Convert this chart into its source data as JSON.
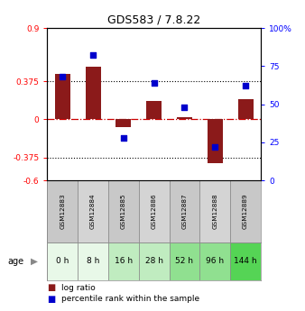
{
  "title": "GDS583 / 7.8.22",
  "samples": [
    "GSM12883",
    "GSM12884",
    "GSM12885",
    "GSM12886",
    "GSM12887",
    "GSM12888",
    "GSM12889"
  ],
  "ages": [
    "0 h",
    "8 h",
    "16 h",
    "28 h",
    "52 h",
    "96 h",
    "144 h"
  ],
  "log_ratio": [
    0.45,
    0.52,
    -0.08,
    0.18,
    0.02,
    -0.43,
    0.2
  ],
  "percentile": [
    68,
    82,
    28,
    64,
    48,
    22,
    62
  ],
  "bar_color": "#8B1A1A",
  "dot_color": "#0000CC",
  "left_yticks": [
    0.9,
    0.375,
    0.0,
    -0.375,
    -0.6
  ],
  "left_ylabels": [
    "0.9",
    "0.375",
    "0",
    "-0.375",
    "-0.6"
  ],
  "right_yticks": [
    100,
    75,
    50,
    25,
    0
  ],
  "right_ylabels": [
    "100%",
    "75",
    "50",
    "25",
    "0"
  ],
  "ylim": [
    -0.6,
    0.9
  ],
  "right_ylim": [
    0,
    100
  ],
  "hline_y": [
    0.375,
    -0.375
  ],
  "zero_line_y": 0,
  "age_colors": [
    "#e8f8e8",
    "#e8f8e8",
    "#c0ecc0",
    "#c0ecc0",
    "#90e090",
    "#90e090",
    "#55d455"
  ],
  "gsm_color_even": "#c8c8c8",
  "gsm_color_odd": "#d4d4d4",
  "legend_log_ratio": "log ratio",
  "legend_percentile": "percentile rank within the sample",
  "background_color": "#ffffff"
}
